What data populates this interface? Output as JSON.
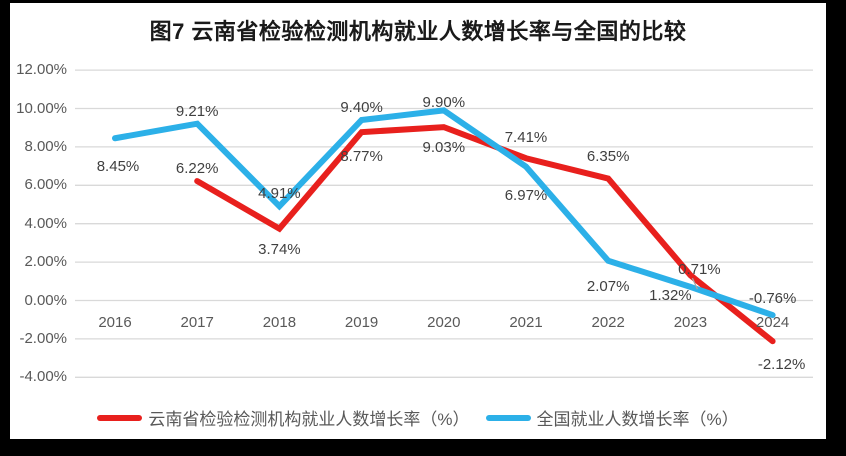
{
  "window": {
    "frame_color": "#000000",
    "canvas_color": "#ffffff"
  },
  "chart_data": {
    "type": "line",
    "title": "图7  云南省检验检测机构就业人数增长率与全国的比较",
    "categories": [
      "2016",
      "2017",
      "2018",
      "2019",
      "2020",
      "2021",
      "2022",
      "2023",
      "2024"
    ],
    "series": [
      {
        "name": "云南省检验检测机构就业人数增长率（%）",
        "color": "#e8201d",
        "values": [
          null,
          6.22,
          3.74,
          8.77,
          9.03,
          7.41,
          6.35,
          1.32,
          -2.12
        ],
        "labels": [
          null,
          "6.22%",
          "3.74%",
          "8.77%",
          "9.03%",
          "7.41%",
          "6.35%",
          "1.32%",
          "-2.12%"
        ],
        "label_positions": [
          null,
          "above",
          "below",
          "below",
          "below",
          "above",
          "above",
          "below",
          "below"
        ]
      },
      {
        "name": "全国就业人数增长率（%）",
        "color": "#2cb0e8",
        "values": [
          8.45,
          9.21,
          4.91,
          9.4,
          9.9,
          6.97,
          2.07,
          0.71,
          -0.76
        ],
        "labels": [
          "8.45%",
          "9.21%",
          "4.91%",
          "9.40%",
          "9.90%",
          "6.97%",
          "2.07%",
          "0.71%",
          "-0.76%"
        ],
        "label_positions": [
          "below",
          "above",
          "above",
          "above",
          "above",
          "below",
          "below",
          "above",
          "above"
        ]
      }
    ],
    "xlabel": "",
    "ylabel": "",
    "y_ticks": [
      "12.00%",
      "10.00%",
      "8.00%",
      "6.00%",
      "4.00%",
      "2.00%",
      "0.00%",
      "-2.00%",
      "-4.00%"
    ],
    "y_tick_values": [
      12,
      10,
      8,
      6,
      4,
      2,
      0,
      -2,
      -4
    ],
    "ylim": [
      -4,
      12
    ],
    "grid": true,
    "gridline_color": "#d9d9d9",
    "axis_text_color": "#595959",
    "data_label_color": "#404040",
    "legend_position": "bottom-center",
    "leader_line": {
      "category": "2023",
      "series": "云南省检验检测机构就业人数增长率（%）",
      "color": "#a6a6a6"
    }
  }
}
